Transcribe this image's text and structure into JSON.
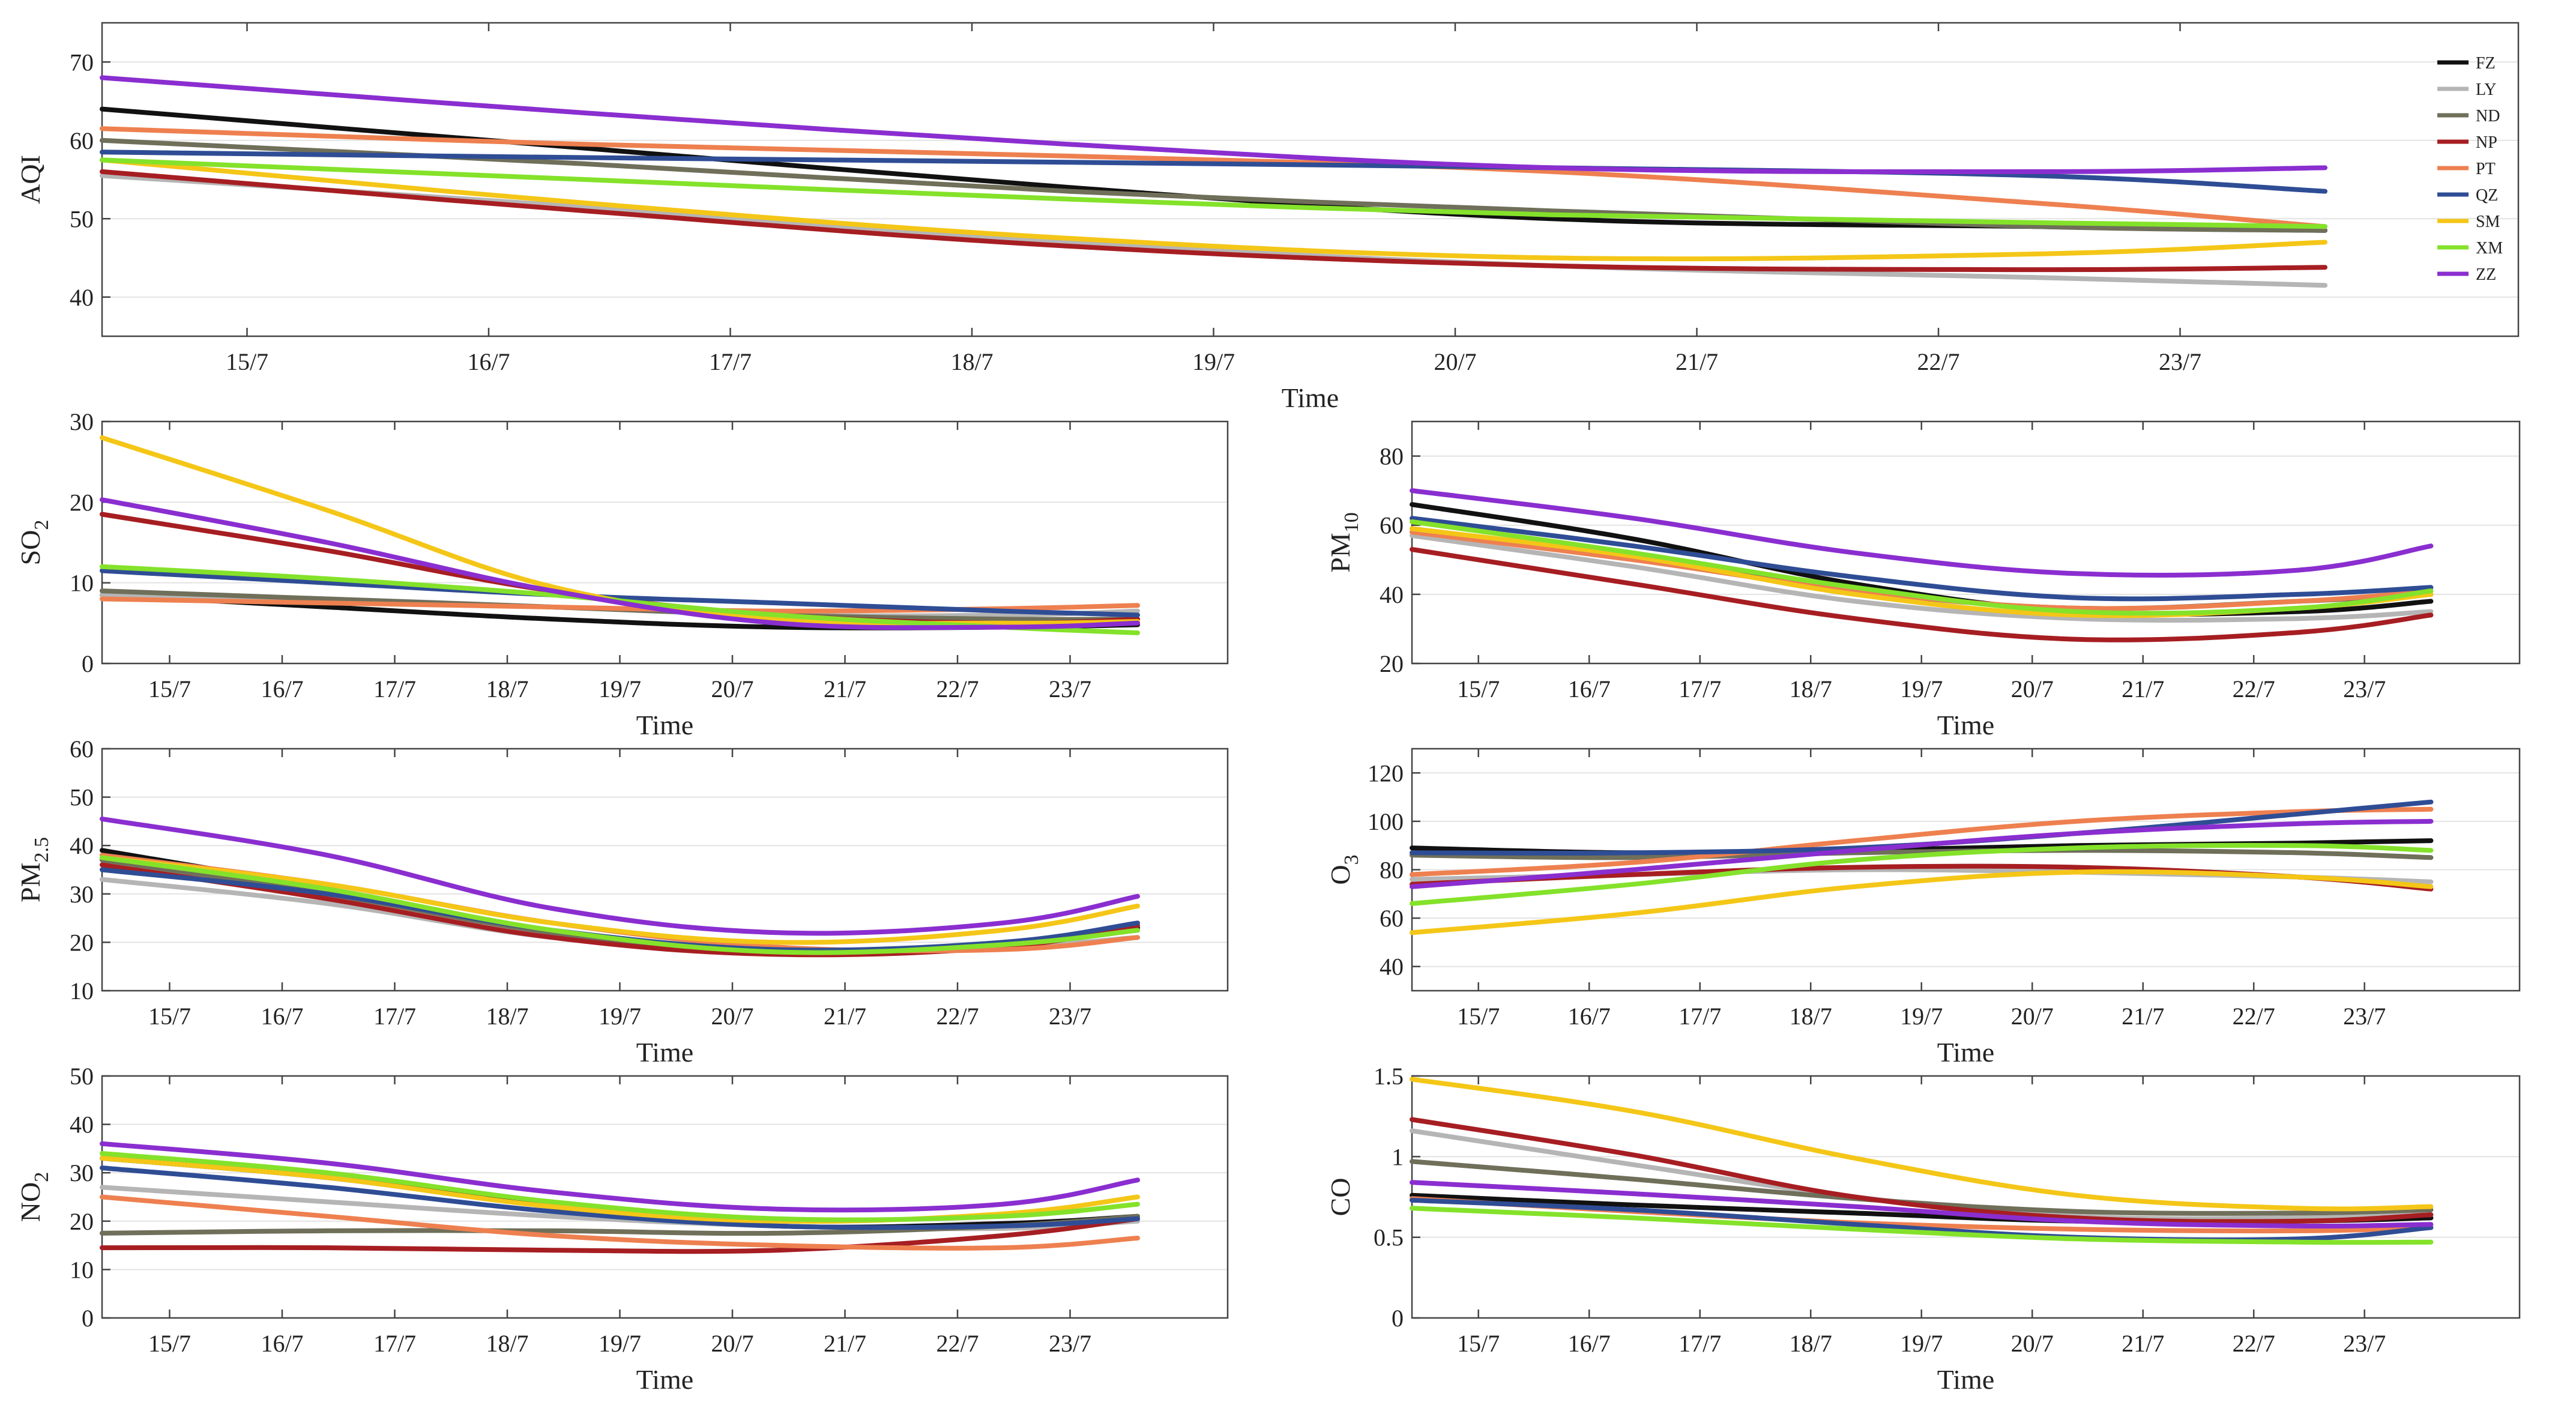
{
  "x_ticks": [
    "15/7",
    "16/7",
    "17/7",
    "18/7",
    "19/7",
    "20/7",
    "21/7",
    "22/7",
    "23/7"
  ],
  "legend": [
    {
      "name": "FZ",
      "color": "#111111"
    },
    {
      "name": "LY",
      "color": "#b5b5b5"
    },
    {
      "name": "ND",
      "color": "#6f6f5a"
    },
    {
      "name": "NP",
      "color": "#a61e22"
    },
    {
      "name": "PT",
      "color": "#ee8050"
    },
    {
      "name": "QZ",
      "color": "#2f4d95"
    },
    {
      "name": "SM",
      "color": "#f4c617"
    },
    {
      "name": "XM",
      "color": "#84e22a"
    },
    {
      "name": "ZZ",
      "color": "#8a2ed0"
    }
  ],
  "chart_data": [
    {
      "id": "aqi",
      "type": "line",
      "xlabel": "Time",
      "ylabel_main": "AQI",
      "ylabel_sub": "",
      "xlim": [
        14.4,
        24.4
      ],
      "ylim": [
        35,
        75
      ],
      "yticks": [
        40,
        50,
        60,
        70
      ],
      "ytick_labels": [
        "40",
        "50",
        "60",
        "70"
      ],
      "x": [
        14.4,
        16.4,
        18.4,
        20.4,
        22.4,
        23.6
      ],
      "series": [
        {
          "name": "FZ",
          "values": [
            64,
            59,
            54,
            50,
            49,
            48.5
          ]
        },
        {
          "name": "LY",
          "values": [
            55.5,
            51.5,
            47,
            44,
            42.5,
            41.5
          ]
        },
        {
          "name": "ND",
          "values": [
            60,
            57,
            53.5,
            51,
            49,
            48.5
          ]
        },
        {
          "name": "NP",
          "values": [
            56,
            51,
            46.5,
            44,
            43.5,
            43.8
          ]
        },
        {
          "name": "PT",
          "values": [
            61.5,
            59.5,
            58,
            56,
            52,
            49
          ]
        },
        {
          "name": "QZ",
          "values": [
            58.5,
            57.8,
            57.2,
            56.5,
            55.5,
            53.5
          ]
        },
        {
          "name": "SM",
          "values": [
            57.5,
            52,
            47.5,
            45,
            45.5,
            47
          ]
        },
        {
          "name": "XM",
          "values": [
            57.5,
            55,
            52.5,
            50.5,
            49.5,
            49
          ]
        },
        {
          "name": "ZZ",
          "values": [
            68,
            63.5,
            59.5,
            56.5,
            56,
            56.5
          ]
        }
      ]
    },
    {
      "id": "so2",
      "type": "line",
      "xlabel": "Time",
      "ylabel_main": "SO",
      "ylabel_sub": "2",
      "xlim": [
        14.4,
        24.4
      ],
      "ylim": [
        0,
        30
      ],
      "yticks": [
        0,
        10,
        20,
        30
      ],
      "ytick_labels": [
        "0",
        "10",
        "20",
        "30"
      ],
      "x": [
        14.4,
        16.4,
        18.4,
        20.4,
        22.4,
        23.6
      ],
      "series": [
        {
          "name": "FZ",
          "values": [
            8.5,
            7,
            5.5,
            4.5,
            4.5,
            4.8
          ]
        },
        {
          "name": "LY",
          "values": [
            8.5,
            8,
            7,
            6,
            6,
            6.5
          ]
        },
        {
          "name": "ND",
          "values": [
            9,
            8,
            7,
            6,
            5.5,
            5.5
          ]
        },
        {
          "name": "NP",
          "values": [
            18.5,
            14,
            9,
            6,
            5,
            5.5
          ]
        },
        {
          "name": "PT",
          "values": [
            8,
            7.5,
            7,
            6.5,
            6.8,
            7.2
          ]
        },
        {
          "name": "QZ",
          "values": [
            11.5,
            10,
            8.5,
            7.5,
            6.5,
            6
          ]
        },
        {
          "name": "SM",
          "values": [
            28,
            19,
            9.5,
            5.5,
            5,
            5.2
          ]
        },
        {
          "name": "XM",
          "values": [
            12,
            10.5,
            8.5,
            6,
            4.5,
            3.8
          ]
        },
        {
          "name": "ZZ",
          "values": [
            20.3,
            15,
            9,
            5,
            4.5,
            5
          ]
        }
      ]
    },
    {
      "id": "pm10",
      "type": "line",
      "xlabel": "Time",
      "ylabel_main": "PM",
      "ylabel_sub": "10",
      "xlim": [
        14.4,
        24.4
      ],
      "ylim": [
        20,
        90
      ],
      "yticks": [
        20,
        40,
        60,
        80
      ],
      "ytick_labels": [
        "20",
        "40",
        "60",
        "80"
      ],
      "x": [
        14.4,
        16.4,
        18.4,
        20.4,
        22.4,
        23.6
      ],
      "series": [
        {
          "name": "FZ",
          "values": [
            66,
            56,
            43,
            35,
            35,
            38
          ]
        },
        {
          "name": "LY",
          "values": [
            57,
            48,
            38,
            33,
            33,
            35
          ]
        },
        {
          "name": "ND",
          "values": [
            59,
            51,
            41,
            36,
            38,
            40
          ]
        },
        {
          "name": "NP",
          "values": [
            53,
            43,
            33,
            27,
            29,
            34
          ]
        },
        {
          "name": "PT",
          "values": [
            58,
            50,
            41,
            36,
            38,
            41
          ]
        },
        {
          "name": "QZ",
          "values": [
            62,
            54,
            45,
            39,
            40,
            42
          ]
        },
        {
          "name": "SM",
          "values": [
            59,
            51,
            40,
            34,
            36,
            40
          ]
        },
        {
          "name": "XM",
          "values": [
            61,
            52,
            42,
            35,
            36,
            41
          ]
        },
        {
          "name": "ZZ",
          "values": [
            70,
            62,
            52,
            46,
            47,
            54
          ]
        }
      ]
    },
    {
      "id": "pm25",
      "type": "line",
      "xlabel": "Time",
      "ylabel_main": "PM",
      "ylabel_sub": "2.5",
      "xlim": [
        14.4,
        24.4
      ],
      "ylim": [
        10,
        60
      ],
      "yticks": [
        10,
        20,
        30,
        40,
        50,
        60
      ],
      "ytick_labels": [
        "10",
        "20",
        "30",
        "40",
        "50",
        "60"
      ],
      "x": [
        14.4,
        16.4,
        18.4,
        20.4,
        22.4,
        23.6
      ],
      "series": [
        {
          "name": "FZ",
          "values": [
            39,
            31,
            22,
            18,
            19.5,
            23
          ]
        },
        {
          "name": "LY",
          "values": [
            33,
            28,
            21,
            18,
            19,
            21
          ]
        },
        {
          "name": "ND",
          "values": [
            37,
            30,
            22,
            18,
            19.5,
            22.5
          ]
        },
        {
          "name": "NP",
          "values": [
            36,
            29,
            21,
            17.5,
            19,
            23.5
          ]
        },
        {
          "name": "PT",
          "values": [
            38,
            32,
            24,
            19,
            18.5,
            21
          ]
        },
        {
          "name": "QZ",
          "values": [
            35,
            30,
            22.5,
            18.5,
            20,
            24
          ]
        },
        {
          "name": "SM",
          "values": [
            37.5,
            32,
            24,
            20,
            22.5,
            27.5
          ]
        },
        {
          "name": "XM",
          "values": [
            37.5,
            31,
            22.5,
            18,
            19.5,
            22.5
          ]
        },
        {
          "name": "ZZ",
          "values": [
            45.5,
            38,
            27,
            22,
            24,
            29.5
          ]
        }
      ]
    },
    {
      "id": "o3",
      "type": "line",
      "xlabel": "Time",
      "ylabel_main": "O",
      "ylabel_sub": "3",
      "xlim": [
        14.4,
        24.4
      ],
      "ylim": [
        30,
        130
      ],
      "yticks": [
        40,
        60,
        80,
        100,
        120
      ],
      "ytick_labels": [
        "40",
        "60",
        "80",
        "100",
        "120"
      ],
      "x": [
        14.4,
        16.4,
        18.4,
        20.4,
        22.4,
        23.6
      ],
      "series": [
        {
          "name": "FZ",
          "values": [
            89,
            87,
            88,
            90,
            91,
            92
          ]
        },
        {
          "name": "LY",
          "values": [
            76,
            78,
            80,
            79,
            77,
            75
          ]
        },
        {
          "name": "ND",
          "values": [
            86,
            85,
            87,
            88,
            87,
            85
          ]
        },
        {
          "name": "NP",
          "values": [
            74,
            78,
            81,
            81,
            77,
            72
          ]
        },
        {
          "name": "PT",
          "values": [
            78,
            83,
            92,
            100,
            104,
            105
          ]
        },
        {
          "name": "QZ",
          "values": [
            87,
            87,
            89,
            95,
            103,
            108
          ]
        },
        {
          "name": "SM",
          "values": [
            54,
            62,
            73,
            79,
            77,
            73
          ]
        },
        {
          "name": "XM",
          "values": [
            66,
            74,
            84,
            89,
            90,
            88
          ]
        },
        {
          "name": "ZZ",
          "values": [
            73,
            80,
            88,
            95,
            99,
            100
          ]
        }
      ]
    },
    {
      "id": "no2",
      "type": "line",
      "xlabel": "Time",
      "ylabel_main": "NO",
      "ylabel_sub": "2",
      "xlim": [
        14.4,
        24.4
      ],
      "ylim": [
        0,
        50
      ],
      "yticks": [
        0,
        10,
        20,
        30,
        40,
        50
      ],
      "ytick_labels": [
        "0",
        "10",
        "20",
        "30",
        "40",
        "50"
      ],
      "x": [
        14.4,
        16.4,
        18.4,
        20.4,
        22.4,
        23.6
      ],
      "series": [
        {
          "name": "FZ",
          "values": [
            33,
            29,
            23,
            19,
            19.5,
            21
          ]
        },
        {
          "name": "LY",
          "values": [
            27,
            24,
            21,
            19,
            18.5,
            20
          ]
        },
        {
          "name": "ND",
          "values": [
            17.5,
            18,
            18,
            17.5,
            19,
            21
          ]
        },
        {
          "name": "NP",
          "values": [
            14.5,
            14.5,
            14,
            14,
            17,
            20.5
          ]
        },
        {
          "name": "PT",
          "values": [
            25,
            21,
            17,
            15,
            14.5,
            16.5
          ]
        },
        {
          "name": "QZ",
          "values": [
            31,
            27,
            22,
            19,
            19,
            20.5
          ]
        },
        {
          "name": "SM",
          "values": [
            33,
            29,
            23,
            20,
            21.5,
            25
          ]
        },
        {
          "name": "XM",
          "values": [
            34,
            30,
            24,
            20.5,
            21,
            23.5
          ]
        },
        {
          "name": "ZZ",
          "values": [
            36,
            32,
            26,
            22.5,
            23.5,
            28.5
          ]
        }
      ]
    },
    {
      "id": "co",
      "type": "line",
      "xlabel": "Time",
      "ylabel_main": "CO",
      "ylabel_sub": "",
      "xlim": [
        14.4,
        24.4
      ],
      "ylim": [
        0,
        1.5
      ],
      "yticks": [
        0,
        0.5,
        1,
        1.5
      ],
      "ytick_labels": [
        "0",
        "0.5",
        "1",
        "1.5"
      ],
      "x": [
        14.4,
        16.4,
        18.4,
        20.4,
        22.4,
        23.6
      ],
      "series": [
        {
          "name": "FZ",
          "values": [
            0.76,
            0.7,
            0.65,
            0.6,
            0.6,
            0.62
          ]
        },
        {
          "name": "LY",
          "values": [
            1.16,
            0.95,
            0.75,
            0.63,
            0.62,
            0.64
          ]
        },
        {
          "name": "ND",
          "values": [
            0.97,
            0.86,
            0.74,
            0.66,
            0.65,
            0.67
          ]
        },
        {
          "name": "NP",
          "values": [
            1.23,
            1.01,
            0.75,
            0.62,
            0.6,
            0.64
          ]
        },
        {
          "name": "PT",
          "values": [
            0.74,
            0.66,
            0.59,
            0.55,
            0.54,
            0.56
          ]
        },
        {
          "name": "QZ",
          "values": [
            0.73,
            0.67,
            0.58,
            0.5,
            0.49,
            0.56
          ]
        },
        {
          "name": "SM",
          "values": [
            1.48,
            1.28,
            0.99,
            0.76,
            0.68,
            0.69
          ]
        },
        {
          "name": "XM",
          "values": [
            0.68,
            0.62,
            0.55,
            0.49,
            0.47,
            0.47
          ]
        },
        {
          "name": "ZZ",
          "values": [
            0.84,
            0.77,
            0.69,
            0.6,
            0.57,
            0.58
          ]
        }
      ]
    }
  ]
}
